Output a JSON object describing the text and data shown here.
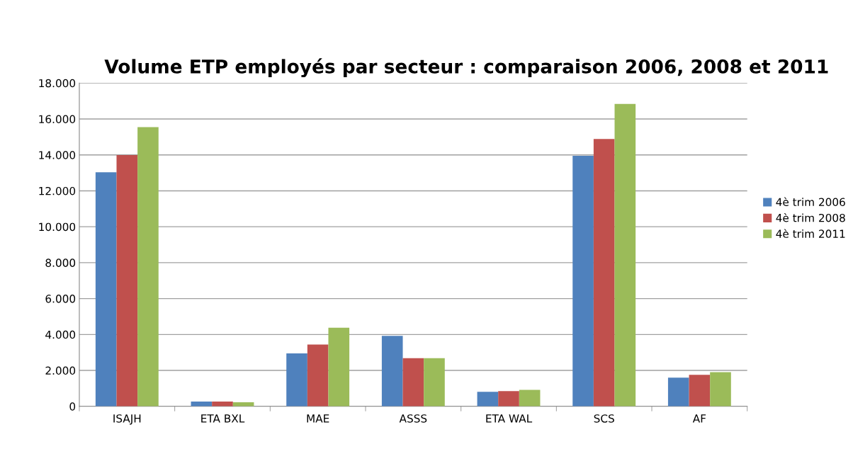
{
  "chart_data": {
    "type": "bar",
    "title": "Volume ETP employés par secteur : comparaison 2006, 2008 et 2011",
    "categories": [
      "ISAJH",
      "ETA BXL",
      "MAE",
      "ASSS",
      "ETA WAL",
      "SCS",
      "AF"
    ],
    "series": [
      {
        "name": "4è trim 2006",
        "color": "#4f81bd",
        "values": [
          13030,
          270,
          2950,
          3920,
          810,
          13950,
          1600
        ]
      },
      {
        "name": "4è trim 2008",
        "color": "#c0504d",
        "values": [
          13990,
          270,
          3440,
          2680,
          850,
          14890,
          1760
        ]
      },
      {
        "name": "4è trim 2011",
        "color": "#9bbb59",
        "values": [
          15550,
          225,
          4380,
          2680,
          920,
          16840,
          1900
        ]
      }
    ],
    "ylim": [
      0,
      18000
    ],
    "yticks": [
      0,
      {
        "value": 2000,
        "label": "2.000"
      },
      {
        "value": 4000,
        "label": "4.000"
      },
      {
        "value": 6000,
        "label": "6.000"
      },
      {
        "value": 8000,
        "label": "8.000"
      },
      {
        "value": 10000,
        "label": "10.000"
      },
      {
        "value": 12000,
        "label": "12.000"
      },
      {
        "value": 14000,
        "label": "14.000"
      },
      {
        "value": 16000,
        "label": "16.000"
      },
      {
        "value": 18000,
        "label": "18.000"
      }
    ],
    "grid": "y",
    "legend": "right"
  }
}
